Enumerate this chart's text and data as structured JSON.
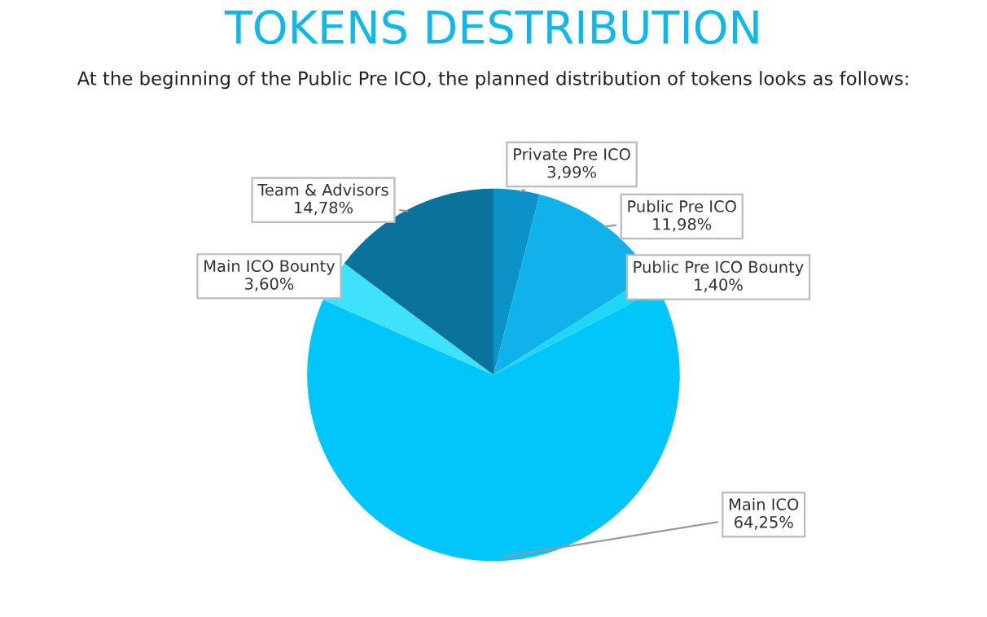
{
  "chart_data": {
    "type": "pie",
    "title": "TOKENS DESTRIBUTION",
    "subtitle": "At the beginning of the Public Pre ICO, the planned distribution of tokens looks as follows:",
    "categories": [
      "Private Pre ICO",
      "Public Pre ICO",
      "Public Pre ICO Bounty",
      "Main ICO",
      "Main ICO Bounty",
      "Team & Advisors"
    ],
    "values": [
      3.99,
      11.98,
      1.4,
      64.25,
      3.6,
      14.78
    ],
    "value_labels": [
      "3,99%",
      "11,98%",
      "1,40%",
      "64,25%",
      "3,60%",
      "14,78%"
    ],
    "colors": [
      "#0b93c8",
      "#0fb2ea",
      "#1fd6f7",
      "#00c6fb",
      "#3fe2fd",
      "#0b729c"
    ],
    "legend": false
  }
}
